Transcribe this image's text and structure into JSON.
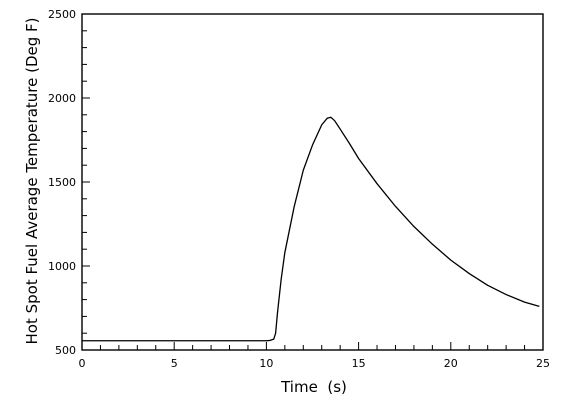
{
  "chart_data": {
    "type": "line",
    "title": "",
    "xlabel": "Time  (s)",
    "ylabel": "Hot Spot Fuel Average Temperature (Deg F)",
    "xlim": [
      0,
      25
    ],
    "ylim": [
      500,
      2500
    ],
    "x_ticks": [
      0,
      5,
      10,
      15,
      20,
      25
    ],
    "y_ticks": [
      500,
      1000,
      1500,
      2000,
      2500
    ],
    "x_tick_labels": [
      "0",
      "5",
      "10",
      "15",
      "20",
      "25"
    ],
    "y_tick_labels": [
      "500",
      "1000",
      "1500",
      "2000",
      "2500"
    ],
    "grid": false,
    "legend": "none",
    "line_color": "#000000",
    "series": [
      {
        "x": [
          0,
          2,
          4,
          6,
          8,
          10,
          10.2,
          10.4,
          10.5,
          10.6,
          10.8,
          11,
          11.5,
          12,
          12.5,
          13,
          13.3,
          13.5,
          13.7,
          14,
          14.5,
          15,
          16,
          17,
          18,
          19,
          20,
          21,
          22,
          23,
          24,
          24.8
        ],
        "y": [
          555,
          555,
          555,
          555,
          555,
          555,
          557,
          565,
          600,
          720,
          920,
          1080,
          1350,
          1570,
          1720,
          1840,
          1880,
          1885,
          1865,
          1815,
          1730,
          1640,
          1490,
          1355,
          1235,
          1130,
          1035,
          955,
          885,
          830,
          785,
          760
        ]
      }
    ]
  }
}
